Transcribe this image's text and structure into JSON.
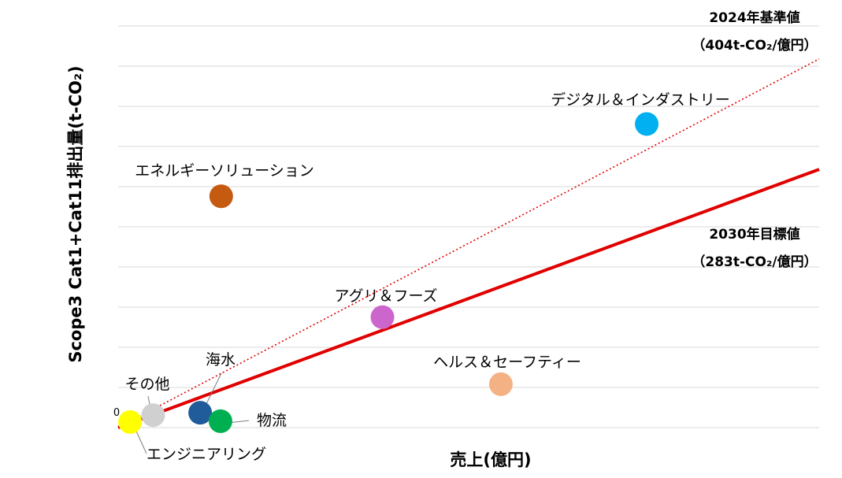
{
  "chart_data": {
    "type": "scatter",
    "title": "",
    "xlabel": "売上(億円)",
    "ylabel": "Scope3 Cat1+Cat11排出量(t-CO₂)",
    "x_tick_labels": [],
    "y_tick_labels": [
      "0"
    ],
    "xlim": [
      0,
      100
    ],
    "ylim": [
      0,
      100
    ],
    "grid": "horizontal",
    "legend": "none",
    "series": [
      {
        "label": "デジタル＆インダストリー",
        "x": 75.4,
        "y": 75.6,
        "color": "#00b0f0"
      },
      {
        "label": "エネルギーソリューション",
        "x": 14.7,
        "y": 57.6,
        "color": "#c55a11"
      },
      {
        "label": "アグリ＆フーズ",
        "x": 37.7,
        "y": 27.5,
        "color": "#cc66cc"
      },
      {
        "label": "ヘルス＆セーフティー",
        "x": 54.6,
        "y": 10.8,
        "color": "#f4b183"
      },
      {
        "label": "海水",
        "x": 11.7,
        "y": 3.7,
        "color": "#1f5c99"
      },
      {
        "label": "物流",
        "x": 14.6,
        "y": 1.6,
        "color": "#00b050"
      },
      {
        "label": "その他",
        "x": 5.0,
        "y": 3.1,
        "color": "#d0d0d0"
      },
      {
        "label": "エンジニアリング",
        "x": 1.7,
        "y": 1.4,
        "color": "#ffff00"
      }
    ],
    "reference_lines": [
      {
        "label": "2024年基準値",
        "sublabel": "（404t-CO₂/億円）",
        "x": [
          0,
          100
        ],
        "y": [
          0,
          91.8
        ],
        "style": "dotted",
        "color": "#e00000"
      },
      {
        "label": "2030年目標値",
        "sublabel": "（283t-CO₂/億円）",
        "x": [
          0,
          100
        ],
        "y": [
          0,
          64.3
        ],
        "style": "solid",
        "color": "#e00000"
      }
    ]
  }
}
